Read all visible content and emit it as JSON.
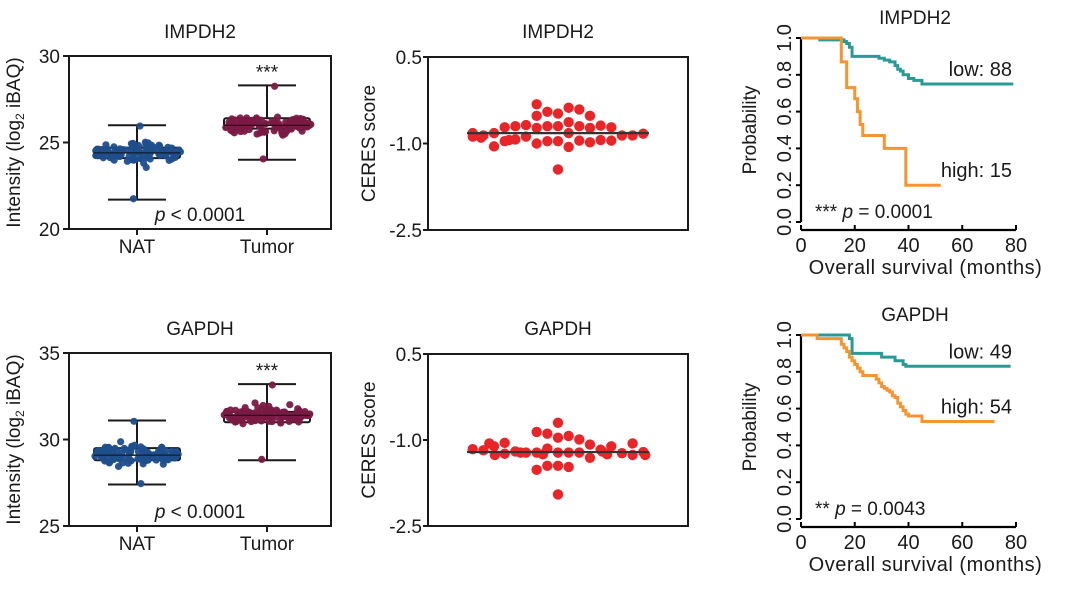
{
  "chart_data": [
    {
      "type": "scatter",
      "subtype": "box-swarm",
      "panel": "boxplot-impdh2",
      "title": "IMPDH2",
      "ylabel": "Intensity (log2 iBAQ)",
      "ylabel_parts": {
        "pre": "Intensity (log",
        "sub": "2",
        "post": " iBAQ)"
      },
      "ylim": [
        20,
        30
      ],
      "yticks": [
        20,
        25,
        30
      ],
      "categories": [
        "NAT",
        "Tumor"
      ],
      "significance": "***",
      "annotation": {
        "p_symbol": "p",
        "text": " < 0.0001"
      },
      "colors": {
        "NAT": "#1f4e8c",
        "Tumor": "#7a1a45"
      },
      "boxes": [
        {
          "name": "NAT",
          "whisker_low": 21.7,
          "q1": 24.1,
          "median": 24.4,
          "q3": 24.7,
          "whisker_high": 26.0,
          "n_points": 100
        },
        {
          "name": "Tumor",
          "whisker_low": 24.0,
          "q1": 25.8,
          "median": 26.0,
          "q3": 26.4,
          "whisker_high": 28.3,
          "n_points": 100
        }
      ]
    },
    {
      "type": "scatter",
      "subtype": "dot-with-median",
      "panel": "ceres-impdh2",
      "title": "IMPDH2",
      "ylabel": "CERES score",
      "ylim": [
        -2.5,
        0.5
      ],
      "yticks": [
        -2.5,
        -1.0,
        0.5
      ],
      "ytick_labels": [
        "-2.5",
        "-1.0",
        "0.5"
      ],
      "median": -0.82,
      "color": "#e8262a",
      "points": [
        -0.7,
        -0.7,
        -0.63,
        -0.73,
        -0.48,
        -0.45,
        -0.7,
        -0.38,
        -0.52,
        -0.68,
        -0.32,
        -0.73,
        -0.41,
        -0.7,
        -0.52,
        -0.69,
        -0.72,
        -0.72,
        -0.82,
        -0.82,
        -0.86,
        -0.86,
        -0.86,
        -0.82,
        -0.83,
        -0.88,
        -0.96,
        -0.96,
        -1.0,
        -0.95,
        -0.98,
        -0.93,
        -1.06,
        -0.94,
        -0.96,
        -0.95,
        -0.94,
        -1.05,
        -0.88,
        -0.9,
        -1.45
      ]
    },
    {
      "type": "line",
      "subtype": "kaplan-meier",
      "panel": "km-impdh2",
      "title": "IMPDH2",
      "xlabel": "Overall survival (months)",
      "ylabel": "Probability",
      "xlim": [
        0,
        80
      ],
      "ylim": [
        0,
        1
      ],
      "xticks": [
        0,
        20,
        40,
        60,
        80
      ],
      "yticks": [
        0.0,
        0.2,
        0.4,
        0.6,
        0.8,
        1.0
      ],
      "ytick_labels": [
        "0.0",
        "0.2",
        "0.4",
        "0.6",
        "0.8",
        "1.0"
      ],
      "annotation": {
        "stars": "***",
        "p_symbol": "p",
        "text": " = 0.0001"
      },
      "series": [
        {
          "name": "low",
          "label": "low: 88",
          "color": "#2a9a96",
          "x": [
            0,
            7,
            7,
            15,
            16,
            17,
            18,
            19,
            19,
            28,
            29,
            31,
            33,
            35,
            36,
            37,
            38,
            40,
            42,
            45,
            45,
            79
          ],
          "y": [
            1.0,
            1.0,
            0.99,
            0.99,
            0.98,
            0.97,
            0.95,
            0.94,
            0.9,
            0.9,
            0.89,
            0.88,
            0.87,
            0.85,
            0.83,
            0.82,
            0.8,
            0.78,
            0.77,
            0.77,
            0.75,
            0.75
          ]
        },
        {
          "name": "high",
          "label": "high: 15",
          "color": "#f7942e",
          "x": [
            0,
            15,
            15,
            17,
            17,
            20,
            20,
            21,
            21,
            22,
            22,
            23,
            23,
            31,
            31,
            39,
            39,
            52
          ],
          "y": [
            1.0,
            1.0,
            0.87,
            0.87,
            0.73,
            0.73,
            0.67,
            0.67,
            0.6,
            0.6,
            0.53,
            0.53,
            0.47,
            0.47,
            0.4,
            0.4,
            0.2,
            0.2
          ]
        }
      ]
    },
    {
      "type": "scatter",
      "subtype": "box-swarm",
      "panel": "boxplot-gapdh",
      "title": "GAPDH",
      "ylabel": "Intensity (log2 iBAQ)",
      "ylabel_parts": {
        "pre": "Intensity (log",
        "sub": "2",
        "post": " iBAQ)"
      },
      "ylim": [
        25,
        35
      ],
      "yticks": [
        25,
        30,
        35
      ],
      "categories": [
        "NAT",
        "Tumor"
      ],
      "significance": "***",
      "annotation": {
        "p_symbol": "p",
        "text": " < 0.0001"
      },
      "colors": {
        "NAT": "#1f4e8c",
        "Tumor": "#7a1a45"
      },
      "boxes": [
        {
          "name": "NAT",
          "whisker_low": 27.4,
          "q1": 28.8,
          "median": 29.1,
          "q3": 29.5,
          "whisker_high": 31.1,
          "n_points": 100
        },
        {
          "name": "Tumor",
          "whisker_low": 28.8,
          "q1": 31.0,
          "median": 31.4,
          "q3": 31.6,
          "whisker_high": 33.2,
          "n_points": 100
        }
      ]
    },
    {
      "type": "scatter",
      "subtype": "dot-with-median",
      "panel": "ceres-gapdh",
      "title": "GAPDH",
      "ylabel": "CERES score",
      "ylim": [
        -2.5,
        0.5
      ],
      "yticks": [
        -2.5,
        -1.0,
        0.5
      ],
      "ytick_labels": [
        "-2.5",
        "-1.0",
        "0.5"
      ],
      "median": -1.21,
      "color": "#e8262a",
      "points": [
        -1.22,
        -1.15,
        -1.22,
        -1.22,
        -1.22,
        -1.22,
        -1.08,
        -1.2,
        -1.45,
        -0.96,
        -1.17,
        -1.45,
        -1.05,
        -1.11,
        -1.47,
        -1.24,
        -0.89,
        -1.11,
        -1.23,
        -0.7,
        -1.31,
        -0.93,
        -0.86,
        -1.18,
        -1.26,
        -1.06,
        -1.16,
        -1.21,
        -1.52,
        -1.06,
        -0.99,
        -1.26,
        -1.26,
        -1.22,
        -1.2,
        -1.25,
        -1.25,
        -1.95
      ]
    },
    {
      "type": "line",
      "subtype": "kaplan-meier",
      "panel": "km-gapdh",
      "title": "GAPDH",
      "xlabel": "Overall survival (months)",
      "ylabel": "Probability",
      "xlim": [
        0,
        80
      ],
      "ylim": [
        0,
        1
      ],
      "xticks": [
        0,
        20,
        40,
        60,
        80
      ],
      "yticks": [
        0.0,
        0.2,
        0.4,
        0.6,
        0.8,
        1.0
      ],
      "ytick_labels": [
        "0.0",
        "0.2",
        "0.4",
        "0.6",
        "0.8",
        "1.0"
      ],
      "annotation": {
        "stars": "**",
        "p_symbol": "p",
        "text": " = 0.0043"
      },
      "series": [
        {
          "name": "low",
          "label": "low: 49",
          "color": "#2a9a96",
          "x": [
            0,
            18,
            18,
            19,
            19,
            30,
            30,
            35,
            35,
            38,
            38,
            39,
            39,
            78
          ],
          "y": [
            1.0,
            1.0,
            0.98,
            0.98,
            0.9,
            0.9,
            0.88,
            0.88,
            0.86,
            0.86,
            0.84,
            0.84,
            0.83,
            0.83
          ]
        },
        {
          "name": "high",
          "label": "high: 54",
          "color": "#f7942e",
          "x": [
            0,
            6,
            6,
            15,
            15,
            16,
            17,
            18,
            19,
            20,
            21,
            22,
            23,
            24,
            28,
            29,
            30,
            31,
            32,
            33,
            34,
            35,
            36,
            37,
            38,
            39,
            40,
            41,
            44,
            45,
            45,
            72
          ],
          "y": [
            1.0,
            1.0,
            0.98,
            0.98,
            0.95,
            0.93,
            0.91,
            0.88,
            0.86,
            0.84,
            0.82,
            0.8,
            0.78,
            0.78,
            0.76,
            0.74,
            0.72,
            0.71,
            0.7,
            0.69,
            0.67,
            0.66,
            0.63,
            0.61,
            0.59,
            0.57,
            0.56,
            0.56,
            0.56,
            0.55,
            0.53,
            0.53
          ]
        }
      ]
    }
  ]
}
